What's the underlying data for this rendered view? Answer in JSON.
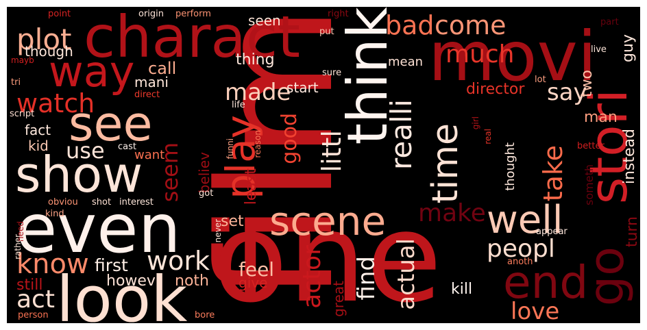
{
  "cloud": {
    "words": [
      {
        "key": "film",
        "text": "film",
        "color": "#bf161b"
      },
      {
        "key": "one",
        "text": "one",
        "color": "#bf161b"
      },
      {
        "key": "movi",
        "text": "movi",
        "color": "#a50f15"
      },
      {
        "key": "charact",
        "text": "charact",
        "color": "#b11218"
      },
      {
        "key": "even",
        "text": "even",
        "color": "#fff1eb"
      },
      {
        "key": "look",
        "text": "look",
        "color": "#fee0d2"
      },
      {
        "key": "show",
        "text": "show",
        "color": "#fee5d9"
      },
      {
        "key": "think",
        "text": "think",
        "color": "#fff5f0"
      },
      {
        "key": "way",
        "text": "way",
        "color": "#c4171c"
      },
      {
        "key": "see",
        "text": "see",
        "color": "#fcbba1"
      },
      {
        "key": "stori",
        "text": "stori",
        "color": "#d21f26"
      },
      {
        "key": "end",
        "text": "end",
        "color": "#800711"
      },
      {
        "key": "go",
        "text": "go",
        "color": "#6b010e"
      },
      {
        "key": "play",
        "text": "play",
        "color": "#e53228"
      },
      {
        "key": "scene",
        "text": "scene",
        "color": "#fcab8f"
      },
      {
        "key": "well",
        "text": "well",
        "color": "#fdcab5"
      },
      {
        "key": "time",
        "text": "time",
        "color": "#fee3d6"
      },
      {
        "key": "plot",
        "text": "plot",
        "color": "#fcae92"
      },
      {
        "key": "watch",
        "text": "watch",
        "color": "#e43027"
      },
      {
        "key": "use",
        "text": "use",
        "color": "#fee4d8"
      },
      {
        "key": "know",
        "text": "know",
        "color": "#fc8a6a"
      },
      {
        "key": "act",
        "text": "act",
        "color": "#fee1d3"
      },
      {
        "key": "work",
        "text": "work",
        "color": "#fee6da"
      },
      {
        "key": "made",
        "text": "made",
        "color": "#fdd0bc"
      },
      {
        "key": "realli",
        "text": "realli",
        "color": "#feeae1"
      },
      {
        "key": "bad",
        "text": "bad",
        "color": "#fb7353"
      },
      {
        "key": "come",
        "text": "come",
        "color": "#fc9576"
      },
      {
        "key": "much",
        "text": "much",
        "color": "#ea362a"
      },
      {
        "key": "say",
        "text": "say",
        "color": "#fdd5c4"
      },
      {
        "key": "make",
        "text": "make",
        "color": "#700311"
      },
      {
        "key": "peopl",
        "text": "peopl",
        "color": "#fedfd0"
      },
      {
        "key": "love",
        "text": "love",
        "color": "#fb7656"
      },
      {
        "key": "actual",
        "text": "actual",
        "color": "#fedbcc"
      },
      {
        "key": "find",
        "text": "find",
        "color": "#fff0e9"
      },
      {
        "key": "actor",
        "text": "actor",
        "color": "#cb181d"
      },
      {
        "key": "littl",
        "text": "littl",
        "color": "#fee4d8"
      },
      {
        "key": "good",
        "text": "good",
        "color": "#f14331"
      },
      {
        "key": "seem",
        "text": "seem",
        "color": "#a30f15"
      },
      {
        "key": "take",
        "text": "take",
        "color": "#fb6b4b"
      },
      {
        "key": "feel",
        "text": "feel",
        "color": "#fcbfa7"
      },
      {
        "key": "first",
        "text": "first",
        "color": "#fff0e8"
      },
      {
        "key": "howev",
        "text": "howev",
        "color": "#fee3d7"
      },
      {
        "key": "noth",
        "text": "noth",
        "color": "#fcb398"
      },
      {
        "key": "still",
        "text": "still",
        "color": "#b91419"
      },
      {
        "key": "director",
        "text": "director",
        "color": "#e83429"
      },
      {
        "key": "man",
        "text": "man",
        "color": "#fc9d7f"
      },
      {
        "key": "guy",
        "text": "guy",
        "color": "#fee7dc"
      },
      {
        "key": "two",
        "text": "two",
        "color": "#fcc2aa"
      },
      {
        "key": "instead",
        "text": "instead",
        "color": "#fee7dc"
      },
      {
        "key": "turn",
        "text": "turn",
        "color": "#8a0812"
      },
      {
        "key": "someth",
        "text": "someth",
        "color": "#67000d"
      },
      {
        "key": "thought",
        "text": "thought",
        "color": "#fee8dd"
      },
      {
        "key": "kill",
        "text": "kill",
        "color": "#fff4ef"
      },
      {
        "key": "great",
        "text": "great",
        "color": "#a50f15"
      },
      {
        "key": "give",
        "text": "give",
        "color": "#d52221"
      },
      {
        "key": "set",
        "text": "set",
        "color": "#fcb499"
      },
      {
        "key": "least",
        "text": "least",
        "color": "#c5171c"
      },
      {
        "key": "believ",
        "text": "believ",
        "color": "#9e0d14"
      },
      {
        "key": "thing",
        "text": "thing",
        "color": "#fee7dc"
      },
      {
        "key": "call",
        "text": "call",
        "color": "#fcad90"
      },
      {
        "key": "mani",
        "text": "mani",
        "color": "#fee6da"
      },
      {
        "key": "start",
        "text": "start",
        "color": "#fee8de"
      },
      {
        "key": "seen",
        "text": "seen",
        "color": "#fee5d8"
      },
      {
        "key": "mean",
        "text": "mean",
        "color": "#fee2d5"
      },
      {
        "key": "though",
        "text": "though",
        "color": "#fee6da"
      },
      {
        "key": "fact",
        "text": "fact",
        "color": "#fee8dd"
      },
      {
        "key": "kid",
        "text": "kid",
        "color": "#fdc9b3"
      },
      {
        "key": "want",
        "text": "want",
        "color": "#fb7151"
      },
      {
        "key": "point",
        "text": "point",
        "color": "#d72322"
      },
      {
        "key": "origin",
        "text": "origin",
        "color": "#fee4d8"
      },
      {
        "key": "perform",
        "text": "perform",
        "color": "#fc9373"
      },
      {
        "key": "right",
        "text": "right",
        "color": "#8c0912"
      },
      {
        "key": "put",
        "text": "put",
        "color": "#fdc7b2"
      },
      {
        "key": "part",
        "text": "part",
        "color": "#67000d"
      },
      {
        "key": "live",
        "text": "live",
        "color": "#fee6da"
      },
      {
        "key": "lot",
        "text": "lot",
        "color": "#fc9e80"
      },
      {
        "key": "mayb",
        "text": "mayb",
        "color": "#d11e1f"
      },
      {
        "key": "tri",
        "text": "tri",
        "color": "#fc9c7d"
      },
      {
        "key": "direct",
        "text": "direct",
        "color": "#ee3a2c"
      },
      {
        "key": "script",
        "text": "script",
        "color": "#fee0d2"
      },
      {
        "key": "life",
        "text": "life",
        "color": "#fee7dc"
      },
      {
        "key": "sure",
        "text": "sure",
        "color": "#fee4d8"
      },
      {
        "key": "cast",
        "text": "cast",
        "color": "#fff2ec"
      },
      {
        "key": "funni",
        "text": "funni",
        "color": "#fca082"
      },
      {
        "key": "reason",
        "text": "reason",
        "color": "#fb7858"
      },
      {
        "key": "girl",
        "text": "girl",
        "color": "#b81419"
      },
      {
        "key": "real",
        "text": "real",
        "color": "#e83429"
      },
      {
        "key": "better",
        "text": "better",
        "color": "#d21f20"
      },
      {
        "key": "appear",
        "text": "appear",
        "color": "#fee7dc"
      },
      {
        "key": "anoth",
        "text": "anoth",
        "color": "#fb7c5c"
      },
      {
        "key": "obviou",
        "text": "obviou",
        "color": "#fc9474"
      },
      {
        "key": "shot",
        "text": "shot",
        "color": "#fee1d3"
      },
      {
        "key": "interest",
        "text": "interest",
        "color": "#fee7db"
      },
      {
        "key": "got",
        "text": "got",
        "color": "#fee5d8"
      },
      {
        "key": "kind",
        "text": "kind",
        "color": "#fca285"
      },
      {
        "key": "never",
        "text": "never",
        "color": "#fee3d6"
      },
      {
        "key": "need",
        "text": "need",
        "color": "#a60f15"
      },
      {
        "key": "rather",
        "text": "rather",
        "color": "#fee5d8"
      },
      {
        "key": "person",
        "text": "person",
        "color": "#fb7353"
      },
      {
        "key": "bore",
        "text": "bore",
        "color": "#fb7d5d"
      }
    ]
  }
}
